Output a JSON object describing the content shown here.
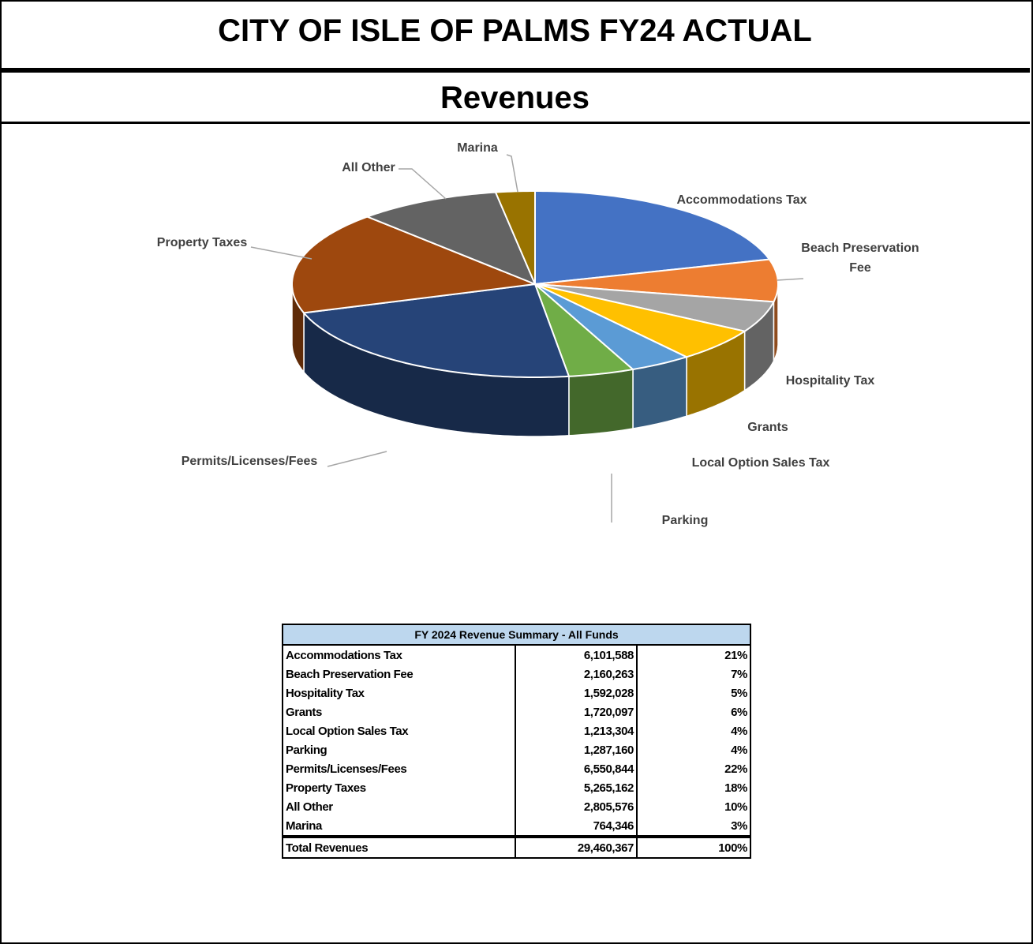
{
  "chart_data": {
    "type": "pie",
    "title": "CITY OF ISLE OF PALMS FY24 ACTUAL",
    "subtitle": "Revenues",
    "categories": [
      "Accommodations Tax",
      "Beach Preservation Fee",
      "Hospitality Tax",
      "Grants",
      "Local Option Sales Tax",
      "Parking",
      "Permits/Licenses/Fees",
      "Property Taxes",
      "All Other",
      "Marina"
    ],
    "values": [
      6101588,
      2160263,
      1592028,
      1720097,
      1213304,
      1287160,
      6550844,
      5265162,
      2805576,
      764346
    ],
    "colors": [
      "#4472c4",
      "#ed7d31",
      "#a5a5a5",
      "#ffc000",
      "#5b9bd5",
      "#70ad47",
      "#264478",
      "#9e480e",
      "#636363",
      "#997300"
    ]
  },
  "table": {
    "title": "FY 2024 Revenue Summary - All Funds",
    "rows": [
      [
        "Accommodations Tax",
        "6,101,588",
        "21%"
      ],
      [
        "Beach Preservation Fee",
        "2,160,263",
        "7%"
      ],
      [
        "Hospitality Tax",
        "1,592,028",
        "5%"
      ],
      [
        "Grants",
        "1,720,097",
        "6%"
      ],
      [
        "Local Option Sales Tax",
        "1,213,304",
        "4%"
      ],
      [
        "Parking",
        "1,287,160",
        "4%"
      ],
      [
        "Permits/Licenses/Fees",
        "6,550,844",
        "22%"
      ],
      [
        "Property Taxes",
        "5,265,162",
        "18%"
      ],
      [
        "All Other",
        "2,805,576",
        "10%"
      ],
      [
        "Marina",
        "764,346",
        "3%"
      ]
    ],
    "total": [
      "Total Revenues",
      "29,460,367",
      "100%"
    ]
  }
}
